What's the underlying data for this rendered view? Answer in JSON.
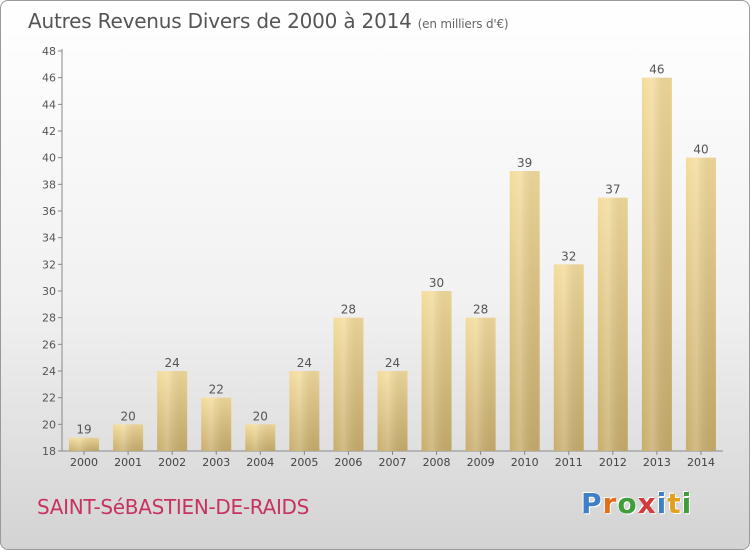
{
  "header": {
    "title": "Autres Revenus Divers de 2000 à 2014",
    "subtitle": "(en milliers d'€)"
  },
  "footer": {
    "place": "SAINT-SéBASTIEN-DE-RAIDS",
    "logo": "Proxiti"
  },
  "colors": {
    "bar_light": "#f4dc9c",
    "bar_dark": "#c8ad6c",
    "place_text": "#c8325f",
    "logo_letters": [
      "#3f7fc6",
      "#e0701e",
      "#3f9d3a",
      "#d33a3a",
      "#3f7fc6",
      "#e0a21e",
      "#3f9d3a"
    ]
  },
  "chart_data": {
    "type": "bar",
    "title": "Autres Revenus Divers de 2000 à 2014",
    "xlabel": "",
    "ylabel": "",
    "categories": [
      "2000",
      "2001",
      "2002",
      "2003",
      "2004",
      "2005",
      "2006",
      "2007",
      "2008",
      "2009",
      "2010",
      "2011",
      "2012",
      "2013",
      "2014"
    ],
    "values": [
      19,
      20,
      24,
      22,
      20,
      24,
      28,
      24,
      30,
      28,
      39,
      32,
      37,
      46,
      40
    ],
    "ylim": [
      18,
      48
    ],
    "yticks": [
      18,
      20,
      22,
      24,
      26,
      28,
      30,
      32,
      34,
      36,
      38,
      40,
      42,
      44,
      46,
      48
    ],
    "grid": false,
    "legend": "none"
  }
}
